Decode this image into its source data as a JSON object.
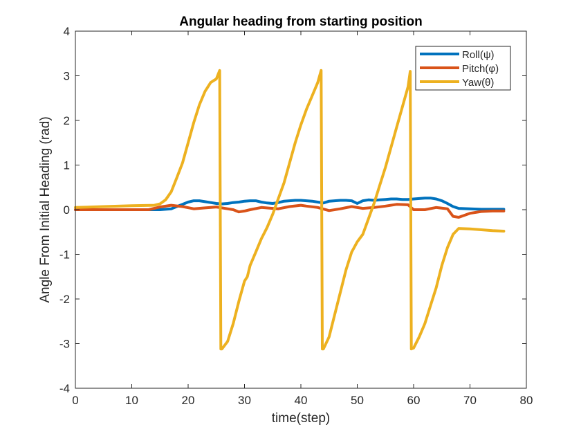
{
  "chart_data": {
    "type": "line",
    "title": "Angular heading from starting position",
    "xlabel": "time(step)",
    "ylabel": "Angle From Initial Heading (rad)",
    "xlim": [
      0,
      80
    ],
    "ylim": [
      -4,
      4
    ],
    "xticks": [
      0,
      10,
      20,
      30,
      40,
      50,
      60,
      70,
      80
    ],
    "yticks": [
      -4,
      -3,
      -2,
      -1,
      0,
      1,
      2,
      3,
      4
    ],
    "grid": false,
    "legend_position": "top-right",
    "series": [
      {
        "name": "Roll(ψ)",
        "color": "#0072BD",
        "x": [
          0,
          5,
          10,
          15,
          17,
          19,
          20,
          21,
          22,
          23,
          24,
          25,
          26,
          27,
          28,
          29,
          30,
          31,
          32,
          33,
          34,
          35,
          36,
          37,
          38,
          39,
          40,
          41,
          42,
          43,
          44,
          45,
          46,
          47,
          48,
          49,
          50,
          51,
          52,
          53,
          54,
          55,
          56,
          57,
          58,
          59,
          60,
          61,
          62,
          63,
          64,
          65,
          66,
          67,
          68,
          70,
          72,
          74,
          76
        ],
        "y": [
          0.0,
          0.0,
          0.0,
          0.0,
          0.02,
          0.12,
          0.17,
          0.2,
          0.2,
          0.18,
          0.16,
          0.14,
          0.13,
          0.14,
          0.16,
          0.17,
          0.19,
          0.2,
          0.2,
          0.17,
          0.15,
          0.14,
          0.16,
          0.19,
          0.2,
          0.21,
          0.21,
          0.2,
          0.19,
          0.17,
          0.15,
          0.19,
          0.2,
          0.21,
          0.21,
          0.2,
          0.14,
          0.2,
          0.22,
          0.21,
          0.22,
          0.23,
          0.24,
          0.24,
          0.23,
          0.23,
          0.24,
          0.25,
          0.26,
          0.26,
          0.24,
          0.2,
          0.14,
          0.07,
          0.03,
          0.02,
          0.01,
          0.01,
          0.01
        ]
      },
      {
        "name": "Pitch(φ)",
        "color": "#D95319",
        "x": [
          0,
          5,
          10,
          13,
          15,
          17,
          19,
          21,
          23,
          25,
          27,
          28,
          29,
          30,
          31,
          33,
          35,
          36,
          38,
          40,
          41,
          43,
          45,
          47,
          49,
          51,
          53,
          55,
          57,
          59,
          60,
          62,
          64,
          66,
          67,
          68,
          70,
          72,
          74,
          76
        ],
        "y": [
          0.0,
          0.0,
          0.0,
          0.0,
          0.06,
          0.1,
          0.07,
          0.02,
          0.04,
          0.06,
          0.02,
          0.0,
          -0.05,
          -0.03,
          0.0,
          0.05,
          0.03,
          0.02,
          0.07,
          0.1,
          0.08,
          0.05,
          -0.02,
          0.02,
          0.07,
          0.03,
          0.05,
          0.08,
          0.12,
          0.11,
          0.0,
          0.0,
          0.05,
          0.02,
          -0.15,
          -0.17,
          -0.08,
          -0.04,
          -0.03,
          -0.03
        ]
      },
      {
        "name": "Yaw(θ)",
        "color": "#EDB120",
        "x": [
          0,
          5,
          10,
          14,
          15,
          16,
          17,
          18,
          19,
          20,
          21,
          22,
          23,
          24,
          25,
          25.6,
          25.8,
          26,
          27,
          28,
          29,
          30,
          30.5,
          31,
          32,
          33,
          34,
          35,
          36,
          37,
          38,
          39,
          40,
          41,
          42,
          43,
          43.6,
          43.8,
          44,
          45,
          46,
          47,
          48,
          49,
          50,
          51,
          52,
          53,
          54,
          55,
          56,
          57,
          58,
          59,
          59.4,
          59.6,
          60,
          61,
          62,
          63,
          64,
          65,
          66,
          67,
          68,
          70,
          72,
          74,
          76
        ],
        "y": [
          0.05,
          0.07,
          0.09,
          0.1,
          0.13,
          0.22,
          0.4,
          0.72,
          1.05,
          1.5,
          1.95,
          2.35,
          2.65,
          2.85,
          2.93,
          3.12,
          -3.12,
          -3.12,
          -2.95,
          -2.55,
          -2.05,
          -1.6,
          -1.5,
          -1.25,
          -0.95,
          -0.65,
          -0.4,
          -0.1,
          0.25,
          0.6,
          1.05,
          1.5,
          1.9,
          2.25,
          2.55,
          2.85,
          3.12,
          -3.12,
          -3.12,
          -2.85,
          -2.35,
          -1.85,
          -1.35,
          -0.95,
          -0.72,
          -0.55,
          -0.2,
          0.15,
          0.55,
          0.95,
          1.4,
          1.85,
          2.3,
          2.75,
          3.1,
          -3.12,
          -3.1,
          -2.85,
          -2.55,
          -2.15,
          -1.75,
          -1.25,
          -0.85,
          -0.55,
          -0.42,
          -0.43,
          -0.45,
          -0.47,
          -0.48
        ]
      }
    ]
  }
}
